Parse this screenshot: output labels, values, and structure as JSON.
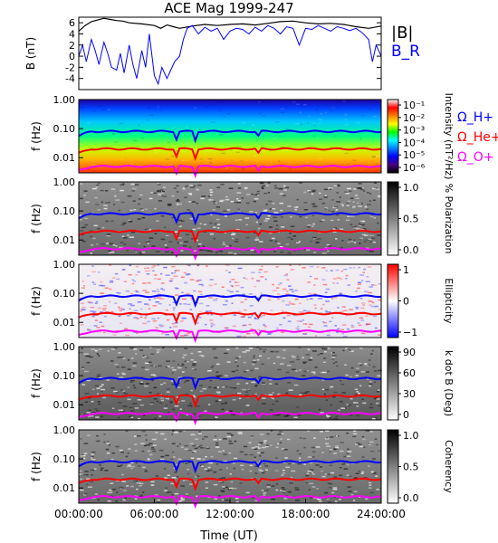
{
  "chart_data": {
    "title": "ACE Mag 1999-247",
    "xlabel": "Time (UT)",
    "x_ticks": [
      "00:00:00",
      "06:00:00",
      "12:00:00",
      "18:00:00",
      "24:00:00"
    ],
    "x_range_hours": [
      0,
      24
    ],
    "panels": [
      {
        "id": "b-field",
        "type": "line",
        "ylabel": "B (nT)",
        "y_ticks": [
          "6",
          "4",
          "2",
          "0",
          "-2",
          "-4"
        ],
        "ylim": [
          -6,
          7
        ],
        "legend": [
          "|B|",
          "B_R"
        ],
        "series": [
          {
            "name": "|B|",
            "color": "#000000",
            "x": [
              0,
              0.5,
              1.0,
              1.5,
              2.0,
              2.5,
              3.0,
              3.5,
              4.0,
              5.0,
              6.0,
              6.5,
              7.0,
              7.5,
              8.0,
              9.0,
              10.0,
              11.0,
              12.0,
              13.0,
              14.0,
              15.0,
              16.0,
              17.0,
              18.0,
              19.0,
              20.0,
              21.0,
              22.0,
              23.0,
              24.0
            ],
            "y": [
              4.5,
              5.5,
              6.2,
              6.5,
              6.8,
              6.6,
              6.4,
              6.3,
              6.0,
              5.8,
              5.5,
              5.0,
              5.6,
              5.3,
              5.0,
              5.4,
              5.7,
              5.5,
              5.7,
              5.8,
              5.6,
              5.9,
              6.2,
              6.3,
              6.0,
              5.8,
              5.9,
              5.7,
              5.3,
              5.0,
              5.4
            ]
          },
          {
            "name": "B_R",
            "color": "#0000ff",
            "x": [
              0,
              0.3,
              0.6,
              1.0,
              1.3,
              1.6,
              2.0,
              2.3,
              2.6,
              3.0,
              3.3,
              3.6,
              4.0,
              4.3,
              4.6,
              5.0,
              5.3,
              5.6,
              6.0,
              6.3,
              6.6,
              7.0,
              7.3,
              7.6,
              8.0,
              8.3,
              8.6,
              9.0,
              9.5,
              10.0,
              10.5,
              11.0,
              11.5,
              12.0,
              12.5,
              13.0,
              13.5,
              14.0,
              14.5,
              15.0,
              15.5,
              16.0,
              16.5,
              17.0,
              17.5,
              18.0,
              18.5,
              19.0,
              19.5,
              20.0,
              20.5,
              21.0,
              21.5,
              22.0,
              22.5,
              23.0,
              23.3,
              23.6,
              24.0
            ],
            "y": [
              0,
              2.0,
              -1.0,
              3.0,
              1.0,
              -1.5,
              2.5,
              0.5,
              -2.0,
              -2.5,
              0.5,
              -3.0,
              2.0,
              -1.5,
              -4.0,
              1.0,
              -2.0,
              4.0,
              -3.5,
              -5.0,
              -2.0,
              -4.0,
              -2.5,
              -1.0,
              0.0,
              3.0,
              5.0,
              5.5,
              4.0,
              5.2,
              4.5,
              5.0,
              3.0,
              4.5,
              5.0,
              4.8,
              4.0,
              5.2,
              4.5,
              5.5,
              5.0,
              4.0,
              5.3,
              5.0,
              2.0,
              5.0,
              4.8,
              5.5,
              5.0,
              4.5,
              5.3,
              5.0,
              4.6,
              5.0,
              4.2,
              3.0,
              -1.0,
              2.0,
              0.0
            ]
          }
        ]
      },
      {
        "id": "intensity",
        "type": "heatmap",
        "ylabel": "f (Hz)",
        "y_ticks": [
          "1.00",
          "0.10",
          "0.01"
        ],
        "ylim_hz": [
          0.003,
          1.0
        ],
        "y_scale": "log",
        "colorbar": {
          "label": "Intensity (nT²/Hz)",
          "ticks": [
            "10⁻¹",
            "10⁻²",
            "10⁻³",
            "10⁻⁴",
            "10⁻⁵",
            "10⁻⁶"
          ],
          "colors": [
            "#ffffff",
            "#ff0000",
            "#ff8000",
            "#ffff00",
            "#00ff00",
            "#00ffff",
            "#0080ff",
            "#0000ff",
            "#4b0082",
            "#000000"
          ]
        }
      },
      {
        "id": "polarization",
        "type": "heatmap",
        "ylabel": "f (Hz)",
        "y_ticks": [
          "1.00",
          "0.10",
          "0.01"
        ],
        "colorbar": {
          "label": "% Polarization",
          "ticks": [
            "1.0",
            "0.5",
            "0.0"
          ],
          "colors": [
            "#000000",
            "#ffffff"
          ]
        }
      },
      {
        "id": "ellipticity",
        "type": "heatmap",
        "ylabel": "f (Hz)",
        "y_ticks": [
          "1.00",
          "0.10",
          "0.01"
        ],
        "colorbar": {
          "label": "Ellipticity",
          "ticks": [
            "1",
            "0",
            "−1"
          ],
          "colors": [
            "#ff0000",
            "#ffffff",
            "#0000ff"
          ]
        }
      },
      {
        "id": "kdotb",
        "type": "heatmap",
        "ylabel": "f (Hz)",
        "y_ticks": [
          "1.00",
          "0.10",
          "0.01"
        ],
        "colorbar": {
          "label": "k dot B (Deg)",
          "ticks": [
            "90",
            "60",
            "30",
            "0"
          ],
          "colors": [
            "#000000",
            "#ffffff"
          ]
        }
      },
      {
        "id": "coherency",
        "type": "heatmap",
        "ylabel": "f (Hz)",
        "y_ticks": [
          "1.00",
          "0.10",
          "0.01"
        ],
        "colorbar": {
          "label": "Coherency",
          "ticks": [
            "1.0",
            "0.5",
            "0.0"
          ],
          "colors": [
            "#000000",
            "#ffffff"
          ]
        }
      }
    ],
    "gyrofrequency_lines": [
      {
        "name": "Ω_H+",
        "color": "#0000ff",
        "approx_hz": 0.08
      },
      {
        "name": "Ω_He+",
        "color": "#ff0000",
        "approx_hz": 0.02
      },
      {
        "name": "Ω_O+",
        "color": "#ff00ff",
        "approx_hz": 0.005
      }
    ]
  }
}
